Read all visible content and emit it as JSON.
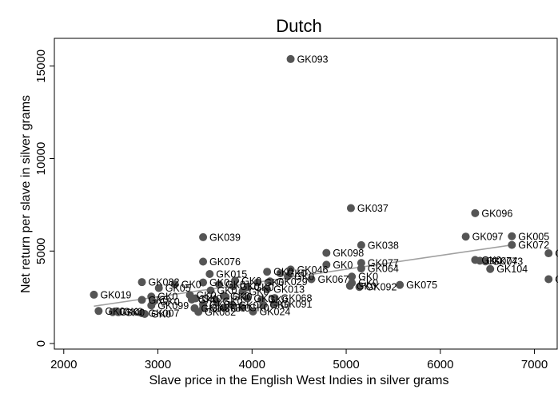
{
  "chart_data": {
    "type": "scatter",
    "title": "Dutch",
    "xlabel": "Slave price in the English West Indies in silver grams",
    "ylabel": "Net return per slave in silver grams",
    "xlim": [
      1900,
      7250
    ],
    "ylim": [
      -300,
      16500
    ],
    "xticks": [
      2000,
      3000,
      4000,
      5000,
      6000,
      7000
    ],
    "yticks": [
      0,
      5000,
      10000,
      15000
    ],
    "x_tick_labels": [
      "2000",
      "3000",
      "4000",
      "5000",
      "6000",
      "7000"
    ],
    "y_tick_labels": [
      "0",
      "5000",
      "10000",
      "15000"
    ],
    "grid": false,
    "legend": "none",
    "colors": {
      "marker": "#555555",
      "fit_line": "#a0a0a0",
      "axis": "#000000"
    },
    "fit_line": {
      "x": [
        2320,
        6760
      ],
      "y": [
        2020,
        5330
      ]
    },
    "points": [
      {
        "label": "GK093",
        "x": 4410,
        "y": 15380
      },
      {
        "label": "GK037",
        "x": 5050,
        "y": 7320
      },
      {
        "label": "GK096",
        "x": 6370,
        "y": 7050
      },
      {
        "label": "GK039",
        "x": 3480,
        "y": 5750
      },
      {
        "label": "GK097",
        "x": 6270,
        "y": 5780
      },
      {
        "label": "GK005",
        "x": 6760,
        "y": 5800
      },
      {
        "label": "GK072",
        "x": 6760,
        "y": 5330
      },
      {
        "label": "GK038",
        "x": 5160,
        "y": 5320
      },
      {
        "label": "GK098",
        "x": 4790,
        "y": 4900
      },
      {
        "label": "GK0",
        "x": 7150,
        "y": 4880
      },
      {
        "label": "GK076",
        "x": 3480,
        "y": 4430
      },
      {
        "label": "GK0",
        "x": 6370,
        "y": 4520
      },
      {
        "label": "GK074",
        "x": 6420,
        "y": 4480
      },
      {
        "label": "GK073",
        "x": 6480,
        "y": 4440
      },
      {
        "label": "GK077",
        "x": 5160,
        "y": 4360
      },
      {
        "label": "GK0",
        "x": 4790,
        "y": 4260
      },
      {
        "label": "GK064",
        "x": 5160,
        "y": 4060
      },
      {
        "label": "GK104",
        "x": 6530,
        "y": 4030
      },
      {
        "label": "GK046",
        "x": 4410,
        "y": 4000
      },
      {
        "label": "GK0",
        "x": 4160,
        "y": 3880
      },
      {
        "label": "GK0",
        "x": 4300,
        "y": 3800
      },
      {
        "label": "GK015",
        "x": 3550,
        "y": 3760
      },
      {
        "label": "GK0",
        "x": 4380,
        "y": 3640
      },
      {
        "label": "GK0",
        "x": 5060,
        "y": 3620
      },
      {
        "label": "GK067",
        "x": 4630,
        "y": 3480
      },
      {
        "label": "GK0",
        "x": 7150,
        "y": 3480
      },
      {
        "label": "GK0",
        "x": 3820,
        "y": 3400
      },
      {
        "label": "GK082",
        "x": 2830,
        "y": 3320
      },
      {
        "label": "GK029",
        "x": 4190,
        "y": 3360
      },
      {
        "label": "GK0",
        "x": 4060,
        "y": 3300
      },
      {
        "label": "GK0",
        "x": 3480,
        "y": 3300
      },
      {
        "label": "GK0",
        "x": 5060,
        "y": 3280
      },
      {
        "label": "GK0",
        "x": 3180,
        "y": 3200
      },
      {
        "label": "GK0",
        "x": 3650,
        "y": 3200
      },
      {
        "label": "GK075",
        "x": 5570,
        "y": 3170
      },
      {
        "label": "GK0",
        "x": 5040,
        "y": 3120
      },
      {
        "label": "GK092",
        "x": 5140,
        "y": 3060
      },
      {
        "label": "GK0",
        "x": 3800,
        "y": 3100
      },
      {
        "label": "GK05",
        "x": 3010,
        "y": 3000
      },
      {
        "label": "GK0",
        "x": 3950,
        "y": 3040
      },
      {
        "label": "GK013",
        "x": 4160,
        "y": 2930
      },
      {
        "label": "GK0",
        "x": 3560,
        "y": 2870
      },
      {
        "label": "GK0",
        "x": 3900,
        "y": 2820
      },
      {
        "label": "GK019",
        "x": 2320,
        "y": 2640
      },
      {
        "label": "GK0",
        "x": 3340,
        "y": 2620
      },
      {
        "label": "GK0",
        "x": 3700,
        "y": 2580
      },
      {
        "label": "GK0",
        "x": 2930,
        "y": 2540
      },
      {
        "label": "GK0",
        "x": 3720,
        "y": 2520
      },
      {
        "label": "GK068",
        "x": 4240,
        "y": 2460
      },
      {
        "label": "GK0",
        "x": 3400,
        "y": 2440
      },
      {
        "label": "GK0",
        "x": 3950,
        "y": 2440
      },
      {
        "label": "GK0",
        "x": 3360,
        "y": 2380
      },
      {
        "label": "GK0",
        "x": 2830,
        "y": 2360
      },
      {
        "label": "GK0",
        "x": 4100,
        "y": 2370
      },
      {
        "label": "GK0",
        "x": 3620,
        "y": 2300
      },
      {
        "label": "GK0",
        "x": 2950,
        "y": 2260
      },
      {
        "label": "GK091",
        "x": 4240,
        "y": 2140
      },
      {
        "label": "GK099",
        "x": 2930,
        "y": 2060
      },
      {
        "label": "GK0",
        "x": 3480,
        "y": 2120
      },
      {
        "label": "GK0",
        "x": 3790,
        "y": 2080
      },
      {
        "label": "GK0",
        "x": 4120,
        "y": 2090
      },
      {
        "label": "GK0",
        "x": 3390,
        "y": 1910
      },
      {
        "label": "GK078",
        "x": 3480,
        "y": 1920
      },
      {
        "label": "GK0",
        "x": 3700,
        "y": 1930
      },
      {
        "label": "GK0",
        "x": 3900,
        "y": 1940
      },
      {
        "label": "GK0",
        "x": 2370,
        "y": 1760
      },
      {
        "label": "GK0",
        "x": 2560,
        "y": 1740
      },
      {
        "label": "GK0",
        "x": 2520,
        "y": 1700
      },
      {
        "label": "GK024",
        "x": 4010,
        "y": 1730
      },
      {
        "label": "GK082",
        "x": 3430,
        "y": 1710
      },
      {
        "label": "GK0",
        "x": 2580,
        "y": 1690
      },
      {
        "label": "GK007",
        "x": 2830,
        "y": 1640
      },
      {
        "label": "GK0",
        "x": 2860,
        "y": 1600
      }
    ]
  }
}
